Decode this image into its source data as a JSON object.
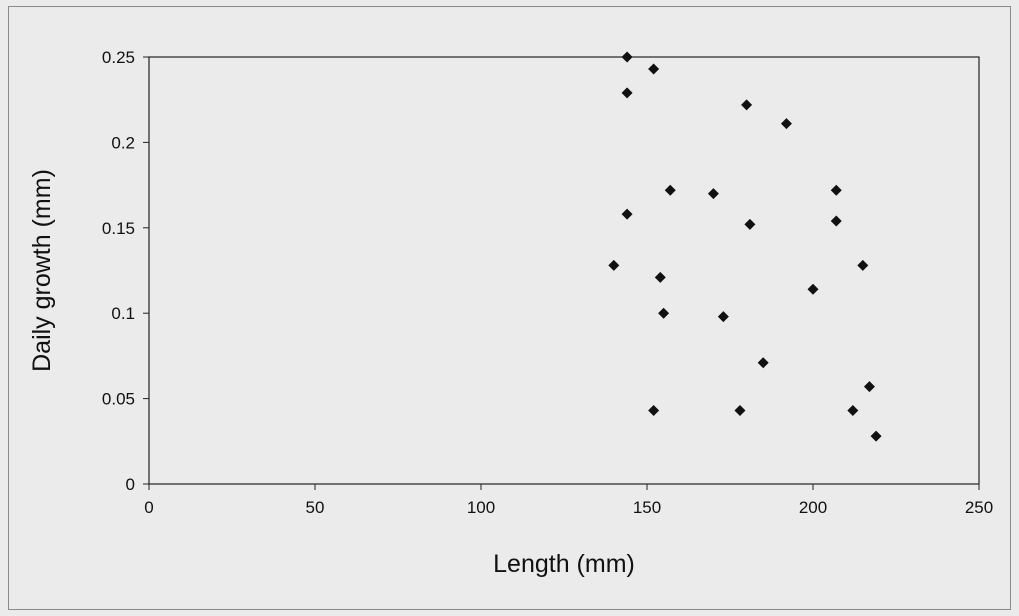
{
  "chart_data": {
    "type": "scatter",
    "title": "",
    "xlabel": "Length (mm)",
    "ylabel": "Daily growth (mm)",
    "xlim": [
      0,
      250
    ],
    "ylim": [
      0,
      0.25
    ],
    "xticks": [
      0,
      50,
      100,
      150,
      200,
      250
    ],
    "yticks": [
      0,
      0.05,
      0.1,
      0.15,
      0.2,
      0.25
    ],
    "xtick_labels": [
      "0",
      "50",
      "100",
      "150",
      "200",
      "250"
    ],
    "ytick_labels": [
      "0",
      "0.05",
      "0.1",
      "0.15",
      "0.2",
      "0.25"
    ],
    "grid": false,
    "legend": "none",
    "marker": "diamond",
    "marker_color": "#111111",
    "points": [
      {
        "x": 144,
        "y": 0.25
      },
      {
        "x": 152,
        "y": 0.243
      },
      {
        "x": 144,
        "y": 0.229
      },
      {
        "x": 180,
        "y": 0.222
      },
      {
        "x": 192,
        "y": 0.211
      },
      {
        "x": 157,
        "y": 0.172
      },
      {
        "x": 170,
        "y": 0.17
      },
      {
        "x": 207,
        "y": 0.172
      },
      {
        "x": 144,
        "y": 0.158
      },
      {
        "x": 181,
        "y": 0.152
      },
      {
        "x": 207,
        "y": 0.154
      },
      {
        "x": 140,
        "y": 0.128
      },
      {
        "x": 215,
        "y": 0.128
      },
      {
        "x": 154,
        "y": 0.121
      },
      {
        "x": 200,
        "y": 0.114
      },
      {
        "x": 155,
        "y": 0.1
      },
      {
        "x": 173,
        "y": 0.098
      },
      {
        "x": 185,
        "y": 0.071
      },
      {
        "x": 217,
        "y": 0.057
      },
      {
        "x": 152,
        "y": 0.043
      },
      {
        "x": 178,
        "y": 0.043
      },
      {
        "x": 212,
        "y": 0.043
      },
      {
        "x": 219,
        "y": 0.028
      }
    ]
  }
}
